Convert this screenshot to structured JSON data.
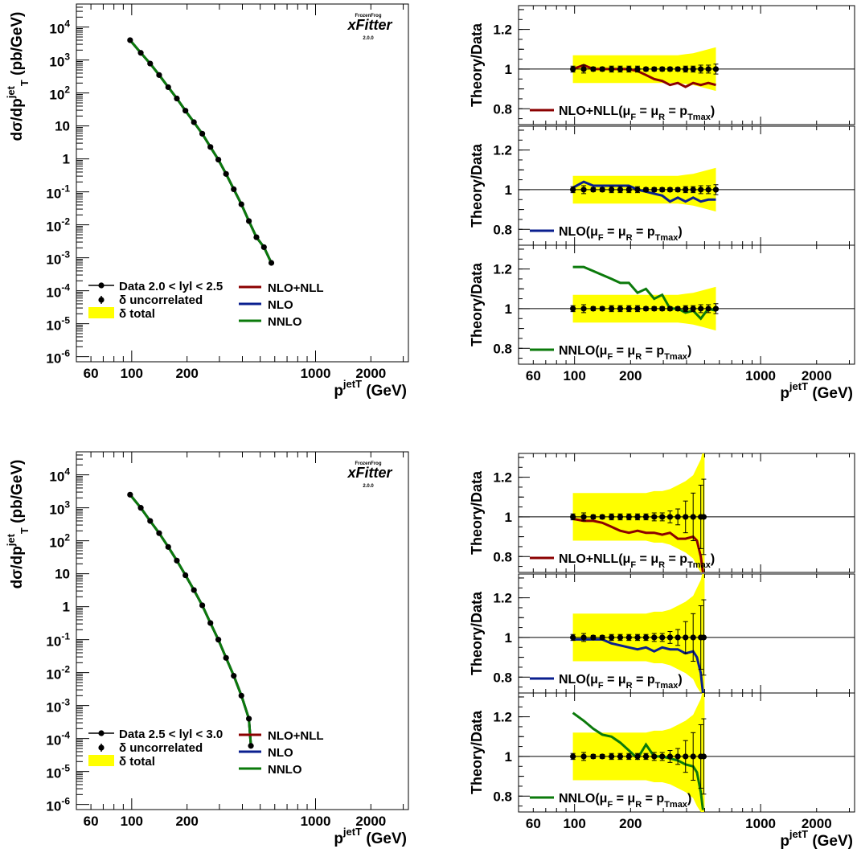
{
  "labels": {
    "xsec_ylabel": "dσ/dp",
    "xsec_ylabel_sup": "jet",
    "xsec_ylabel_sub": "T",
    "xsec_ylabel_units": " (pb/GeV)",
    "x_label": "p",
    "x_label_sup": "jet",
    "x_label_sub": "T",
    "x_label_units": " (GeV)",
    "ratio_ylabel": "Theory/Data",
    "logo_small": "FrozenFrog",
    "logo_main": "xFitter",
    "logo_version": "2.0.0"
  },
  "colors": {
    "nlo_nll": "#8b0000",
    "nlo": "#0a1f8f",
    "nnlo": "#0b7a0b",
    "band": "#ffff00",
    "data": "#000000"
  },
  "legend_main": {
    "data_2_0": "Data 2.0 < lyl < 2.5",
    "data_2_5": "Data 2.5 < lyl < 3.0",
    "uncorrelated": "δ uncorrelated",
    "total": "δ total",
    "nlo_nll": "NLO+NLL",
    "nlo": "NLO",
    "nnlo": "NNLO"
  },
  "legend_ratio": {
    "nlo_nll": "NLO+NLL(μ",
    "nlo": "NLO(μ",
    "nnlo": "NNLO(μ",
    "sub_F": "F",
    "eq": " = μ",
    "sub_R": "R",
    "eq2": " = p",
    "sub_Tmax": "Tmax",
    "close": ")"
  },
  "chart_data": [
    {
      "type": "scatter",
      "title": "",
      "xlabel": "p_T^jet (GeV)",
      "ylabel": "dσ/dp_T^jet (pb/GeV)",
      "xscale": "log",
      "yscale": "log",
      "xlim": [
        50,
        3200
      ],
      "ylim": [
        7e-07,
        50000.0
      ],
      "xticks": [
        "60",
        "100",
        "200",
        "1000",
        "2000"
      ],
      "yticks": [
        "10^4",
        "10^3",
        "10^2",
        "10",
        "1",
        "10^-1",
        "10^-2",
        "10^-3",
        "10^-4",
        "10^-5",
        "10^-6"
      ],
      "x": [
        98,
        112,
        126,
        141,
        158,
        176,
        196,
        218,
        242,
        268,
        296,
        326,
        359,
        395,
        434,
        477,
        524,
        575
      ],
      "series": [
        {
          "name": "Data 2.0 < lyl < 2.5",
          "values": [
            4000,
            1650,
            780,
            350,
            150,
            68,
            29,
            13,
            5.8,
            2.3,
            0.95,
            0.35,
            0.12,
            0.042,
            0.013,
            0.0042,
            0.0021,
            0.0007
          ]
        },
        {
          "name": "NLO+NLL",
          "values": [
            4000,
            1650,
            780,
            350,
            150,
            68,
            29,
            13,
            5.8,
            2.3,
            0.95,
            0.35,
            0.12,
            0.042,
            0.013,
            0.0042,
            0.0021,
            0.0007
          ]
        },
        {
          "name": "NLO",
          "values": [
            4000,
            1650,
            780,
            350,
            150,
            68,
            29,
            13,
            5.8,
            2.3,
            0.95,
            0.35,
            0.12,
            0.042,
            0.013,
            0.0042,
            0.0021,
            0.0007
          ]
        },
        {
          "name": "NNLO",
          "values": [
            4000,
            1650,
            780,
            350,
            150,
            68,
            29,
            13,
            5.8,
            2.3,
            0.95,
            0.35,
            0.12,
            0.042,
            0.013,
            0.0042,
            0.0021,
            0.0007
          ]
        }
      ],
      "legend_position": "bottom-left"
    },
    {
      "type": "line",
      "title": "",
      "xlabel": "p_T^jet (GeV)",
      "ylabel": "Theory/Data",
      "xscale": "log",
      "xlim": [
        50,
        3200
      ],
      "ylim": [
        0.72,
        1.32
      ],
      "x": [
        98,
        112,
        126,
        141,
        158,
        176,
        196,
        218,
        242,
        268,
        296,
        326,
        359,
        395,
        434,
        477,
        524,
        575
      ],
      "data_y": [
        1,
        1,
        1,
        1,
        1,
        1,
        1,
        1,
        1,
        1,
        1,
        1,
        1,
        1,
        1,
        1,
        1,
        1
      ],
      "band_half": [
        0.07,
        0.07,
        0.07,
        0.07,
        0.07,
        0.07,
        0.07,
        0.07,
        0.07,
        0.07,
        0.07,
        0.07,
        0.07,
        0.075,
        0.08,
        0.09,
        0.1,
        0.11
      ],
      "err_half": [
        0.015,
        0.02,
        0.01,
        0.01,
        0.015,
        0.015,
        0.015,
        0.015,
        0.01,
        0.01,
        0.01,
        0.01,
        0.01,
        0.015,
        0.015,
        0.02,
        0.02,
        0.025
      ],
      "series": [
        {
          "name": "NLO+NLL(μ_F = μ_R = p_Tmax)",
          "values": [
            1.0,
            1.02,
            1.0,
            1.0,
            1.0,
            1.0,
            1.0,
            0.99,
            0.97,
            0.95,
            0.94,
            0.92,
            0.93,
            0.91,
            0.93,
            0.92,
            0.93,
            0.92
          ]
        }
      ],
      "legend_position": "bottom-left"
    },
    {
      "type": "line",
      "xlabel": "p_T^jet (GeV)",
      "ylabel": "Theory/Data",
      "xscale": "log",
      "xlim": [
        50,
        3200
      ],
      "ylim": [
        0.72,
        1.32
      ],
      "x": [
        98,
        112,
        126,
        141,
        158,
        176,
        196,
        218,
        242,
        268,
        296,
        326,
        359,
        395,
        434,
        477,
        524,
        575
      ],
      "data_y": [
        1,
        1,
        1,
        1,
        1,
        1,
        1,
        1,
        1,
        1,
        1,
        1,
        1,
        1,
        1,
        1,
        1,
        1
      ],
      "band_half": [
        0.07,
        0.07,
        0.07,
        0.07,
        0.07,
        0.07,
        0.07,
        0.07,
        0.07,
        0.07,
        0.07,
        0.07,
        0.07,
        0.075,
        0.08,
        0.09,
        0.1,
        0.11
      ],
      "err_half": [
        0.015,
        0.02,
        0.01,
        0.01,
        0.015,
        0.015,
        0.015,
        0.015,
        0.01,
        0.01,
        0.01,
        0.01,
        0.01,
        0.015,
        0.015,
        0.02,
        0.02,
        0.025
      ],
      "series": [
        {
          "name": "NLO(μ_F = μ_R = p_Tmax)",
          "values": [
            1.01,
            1.04,
            1.02,
            1.02,
            1.02,
            1.02,
            1.02,
            1.0,
            0.99,
            0.98,
            0.97,
            0.94,
            0.96,
            0.94,
            0.96,
            0.94,
            0.95,
            0.95
          ]
        }
      ],
      "legend_position": "bottom-left"
    },
    {
      "type": "line",
      "xlabel": "p_T^jet (GeV)",
      "ylabel": "Theory/Data",
      "xscale": "log",
      "xlim": [
        50,
        3200
      ],
      "ylim": [
        0.72,
        1.32
      ],
      "x": [
        98,
        112,
        126,
        141,
        158,
        176,
        196,
        218,
        242,
        268,
        296,
        326,
        359,
        395,
        434,
        477,
        524,
        575
      ],
      "data_y": [
        1,
        1,
        1,
        1,
        1,
        1,
        1,
        1,
        1,
        1,
        1,
        1,
        1,
        1,
        1,
        1,
        1,
        1
      ],
      "band_half": [
        0.07,
        0.07,
        0.07,
        0.07,
        0.07,
        0.07,
        0.07,
        0.07,
        0.07,
        0.07,
        0.07,
        0.07,
        0.07,
        0.075,
        0.08,
        0.09,
        0.1,
        0.11
      ],
      "err_half": [
        0.015,
        0.02,
        0.01,
        0.01,
        0.015,
        0.015,
        0.015,
        0.015,
        0.01,
        0.01,
        0.01,
        0.01,
        0.01,
        0.015,
        0.015,
        0.02,
        0.02,
        0.025
      ],
      "series": [
        {
          "name": "NNLO(μ_F = μ_R = p_Tmax)",
          "values": [
            1.21,
            1.21,
            1.19,
            1.17,
            1.15,
            1.13,
            1.13,
            1.08,
            1.1,
            1.05,
            1.07,
            1.0,
            1.0,
            0.98,
            0.99,
            0.95,
            1.0,
            0.99
          ]
        }
      ],
      "legend_position": "bottom-left"
    },
    {
      "type": "scatter",
      "xlabel": "p_T^jet (GeV)",
      "ylabel": "dσ/dp_T^jet (pb/GeV)",
      "xscale": "log",
      "yscale": "log",
      "xlim": [
        50,
        3200
      ],
      "ylim": [
        7e-07,
        50000.0
      ],
      "xticks": [
        "60",
        "100",
        "200",
        "1000",
        "2000"
      ],
      "yticks": [
        "10^4",
        "10^3",
        "10^2",
        "10",
        "1",
        "10^-1",
        "10^-2",
        "10^-3",
        "10^-4",
        "10^-5",
        "10^-6"
      ],
      "x": [
        98,
        112,
        126,
        141,
        158,
        176,
        196,
        218,
        242,
        268,
        296,
        326,
        359,
        395,
        434,
        445
      ],
      "series": [
        {
          "name": "Data 2.5 < lyl < 3.0",
          "values": [
            2500,
            1000,
            400,
            170,
            65,
            25,
            9,
            3.2,
            1.1,
            0.32,
            0.1,
            0.028,
            0.008,
            0.002,
            0.0004,
            6e-05
          ]
        },
        {
          "name": "NLO+NLL",
          "values": [
            2500,
            1000,
            400,
            170,
            65,
            25,
            9,
            3.2,
            1.1,
            0.32,
            0.1,
            0.028,
            0.008,
            0.002,
            0.0004,
            6e-05
          ]
        },
        {
          "name": "NLO",
          "values": [
            2500,
            1000,
            400,
            170,
            65,
            25,
            9,
            3.2,
            1.1,
            0.32,
            0.1,
            0.028,
            0.008,
            0.002,
            0.0004,
            6e-05
          ]
        },
        {
          "name": "NNLO",
          "values": [
            2500,
            1000,
            400,
            170,
            65,
            25,
            9,
            3.2,
            1.1,
            0.32,
            0.1,
            0.028,
            0.008,
            0.002,
            0.0004,
            6e-05
          ]
        }
      ],
      "legend_position": "bottom-left"
    },
    {
      "type": "line",
      "xlabel": "p_T^jet (GeV)",
      "ylabel": "Theory/Data",
      "xscale": "log",
      "xlim": [
        50,
        3200
      ],
      "ylim": [
        0.72,
        1.32
      ],
      "x": [
        98,
        112,
        126,
        141,
        158,
        176,
        196,
        218,
        242,
        268,
        296,
        326,
        359,
        395,
        434,
        477,
        495
      ],
      "data_y": [
        1,
        1,
        1,
        1,
        1,
        1,
        1,
        1,
        1,
        1,
        1,
        1,
        1,
        1,
        1,
        1,
        1
      ],
      "band_x": [
        98,
        112,
        126,
        141,
        158,
        176,
        196,
        218,
        242,
        268,
        296,
        326,
        359,
        395,
        434,
        455,
        477,
        485,
        495,
        500
      ],
      "band_half": [
        0.12,
        0.12,
        0.12,
        0.12,
        0.12,
        0.12,
        0.12,
        0.12,
        0.12,
        0.13,
        0.13,
        0.14,
        0.16,
        0.18,
        0.21,
        0.25,
        0.29,
        0.35,
        0.4,
        0.45
      ],
      "err_half": [
        0.015,
        0.02,
        0.01,
        0.01,
        0.015,
        0.015,
        0.015,
        0.015,
        0.015,
        0.02,
        0.02,
        0.03,
        0.04,
        0.08,
        0.12,
        0.16,
        0.19
      ],
      "series": [
        {
          "name": "NLO+NLL(μ_F = μ_R = p_Tmax)",
          "x": [
            98,
            112,
            126,
            141,
            158,
            176,
            196,
            218,
            242,
            268,
            296,
            326,
            359,
            395,
            434,
            455,
            477,
            490
          ],
          "values": [
            0.99,
            0.98,
            0.98,
            0.97,
            0.95,
            0.93,
            0.92,
            0.93,
            0.92,
            0.92,
            0.91,
            0.92,
            0.89,
            0.89,
            0.9,
            0.88,
            0.8,
            0.7
          ]
        }
      ],
      "legend_position": "bottom-left"
    },
    {
      "type": "line",
      "xlabel": "p_T^jet (GeV)",
      "ylabel": "Theory/Data",
      "xscale": "log",
      "xlim": [
        50,
        3200
      ],
      "ylim": [
        0.72,
        1.32
      ],
      "x": [
        98,
        112,
        126,
        141,
        158,
        176,
        196,
        218,
        242,
        268,
        296,
        326,
        359,
        395,
        434,
        477,
        495
      ],
      "data_y": [
        1,
        1,
        1,
        1,
        1,
        1,
        1,
        1,
        1,
        1,
        1,
        1,
        1,
        1,
        1,
        1,
        1
      ],
      "band_x": [
        98,
        112,
        126,
        141,
        158,
        176,
        196,
        218,
        242,
        268,
        296,
        326,
        359,
        395,
        434,
        455,
        477,
        485,
        495,
        500
      ],
      "band_half": [
        0.12,
        0.12,
        0.12,
        0.12,
        0.12,
        0.12,
        0.12,
        0.12,
        0.12,
        0.13,
        0.13,
        0.14,
        0.16,
        0.18,
        0.21,
        0.25,
        0.29,
        0.35,
        0.4,
        0.45
      ],
      "err_half": [
        0.015,
        0.02,
        0.01,
        0.01,
        0.015,
        0.015,
        0.015,
        0.015,
        0.015,
        0.02,
        0.02,
        0.03,
        0.04,
        0.08,
        0.12,
        0.16,
        0.19
      ],
      "series": [
        {
          "name": "NLO(μ_F = μ_R = p_Tmax)",
          "x": [
            98,
            112,
            126,
            141,
            158,
            176,
            196,
            218,
            242,
            268,
            296,
            326,
            359,
            395,
            434,
            455,
            477,
            490
          ],
          "values": [
            0.99,
            0.99,
            0.99,
            0.99,
            0.97,
            0.96,
            0.95,
            0.94,
            0.95,
            0.93,
            0.95,
            0.94,
            0.94,
            0.92,
            0.93,
            0.9,
            0.82,
            0.72
          ]
        }
      ],
      "legend_position": "bottom-left"
    },
    {
      "type": "line",
      "xlabel": "p_T^jet (GeV)",
      "ylabel": "Theory/Data",
      "xscale": "log",
      "xlim": [
        50,
        3200
      ],
      "ylim": [
        0.72,
        1.32
      ],
      "x": [
        98,
        112,
        126,
        141,
        158,
        176,
        196,
        218,
        242,
        268,
        296,
        326,
        359,
        395,
        434,
        477,
        495
      ],
      "data_y": [
        1,
        1,
        1,
        1,
        1,
        1,
        1,
        1,
        1,
        1,
        1,
        1,
        1,
        1,
        1,
        1,
        1
      ],
      "band_x": [
        98,
        112,
        126,
        141,
        158,
        176,
        196,
        218,
        242,
        268,
        296,
        326,
        359,
        395,
        434,
        455,
        477,
        485,
        495,
        500
      ],
      "band_half": [
        0.12,
        0.12,
        0.12,
        0.12,
        0.12,
        0.12,
        0.12,
        0.12,
        0.12,
        0.13,
        0.13,
        0.14,
        0.16,
        0.18,
        0.21,
        0.25,
        0.29,
        0.35,
        0.4,
        0.45
      ],
      "err_half": [
        0.015,
        0.02,
        0.01,
        0.01,
        0.015,
        0.015,
        0.015,
        0.015,
        0.015,
        0.02,
        0.02,
        0.03,
        0.04,
        0.08,
        0.12,
        0.16,
        0.19
      ],
      "series": [
        {
          "name": "NNLO(μ_F = μ_R = p_Tmax)",
          "x": [
            98,
            112,
            126,
            141,
            158,
            176,
            196,
            218,
            242,
            268,
            296,
            326,
            359,
            395,
            434,
            455,
            477,
            490
          ],
          "values": [
            1.22,
            1.18,
            1.14,
            1.11,
            1.1,
            1.07,
            1.03,
            0.99,
            1.06,
            1.0,
            1.0,
            0.99,
            0.98,
            0.96,
            0.95,
            0.92,
            0.82,
            0.73
          ]
        }
      ],
      "legend_position": "bottom-left"
    }
  ]
}
